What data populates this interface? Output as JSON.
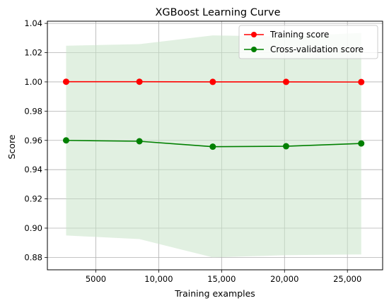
{
  "chart_data": {
    "type": "line",
    "title": "XGBoost  Learning Curve",
    "xlabel": "Training examples",
    "ylabel": "Score",
    "xlim": [
      1150,
      27800
    ],
    "ylim": [
      0.8715,
      1.0415
    ],
    "xticks": [
      5000,
      10000,
      15000,
      20000,
      25000
    ],
    "xtick_labels": [
      "5000",
      "10,000",
      "15,000",
      "20,000",
      "25,000"
    ],
    "yticks": [
      0.88,
      0.9,
      0.92,
      0.94,
      0.96,
      0.98,
      1.0,
      1.02,
      1.04
    ],
    "ytick_labels": [
      "0.88",
      "0.90",
      "0.92",
      "0.94",
      "0.96",
      "0.98",
      "1.00",
      "1.02",
      "1.04"
    ],
    "grid": true,
    "legend_position": "top-right",
    "x": [
      2638,
      8467,
      14296,
      20125,
      26100
    ],
    "series": [
      {
        "name": "Training score",
        "color": "#ff0000",
        "values": [
          1.0001,
          1.0001,
          1.0,
          1.0,
          0.9999
        ],
        "band_lower": [
          1.0001,
          1.0001,
          1.0,
          1.0,
          0.9999
        ],
        "band_upper": [
          1.0001,
          1.0001,
          1.0,
          1.0,
          0.9999
        ]
      },
      {
        "name": "Cross-validation score",
        "color": "#008000",
        "band_color": "#c9e4c9",
        "values": [
          0.96,
          0.9594,
          0.9557,
          0.956,
          0.9579
        ],
        "band_lower": [
          0.895,
          0.8925,
          0.88,
          0.8815,
          0.882
        ],
        "band_upper": [
          1.0247,
          1.0258,
          1.0318,
          1.031,
          1.0335
        ]
      }
    ]
  }
}
